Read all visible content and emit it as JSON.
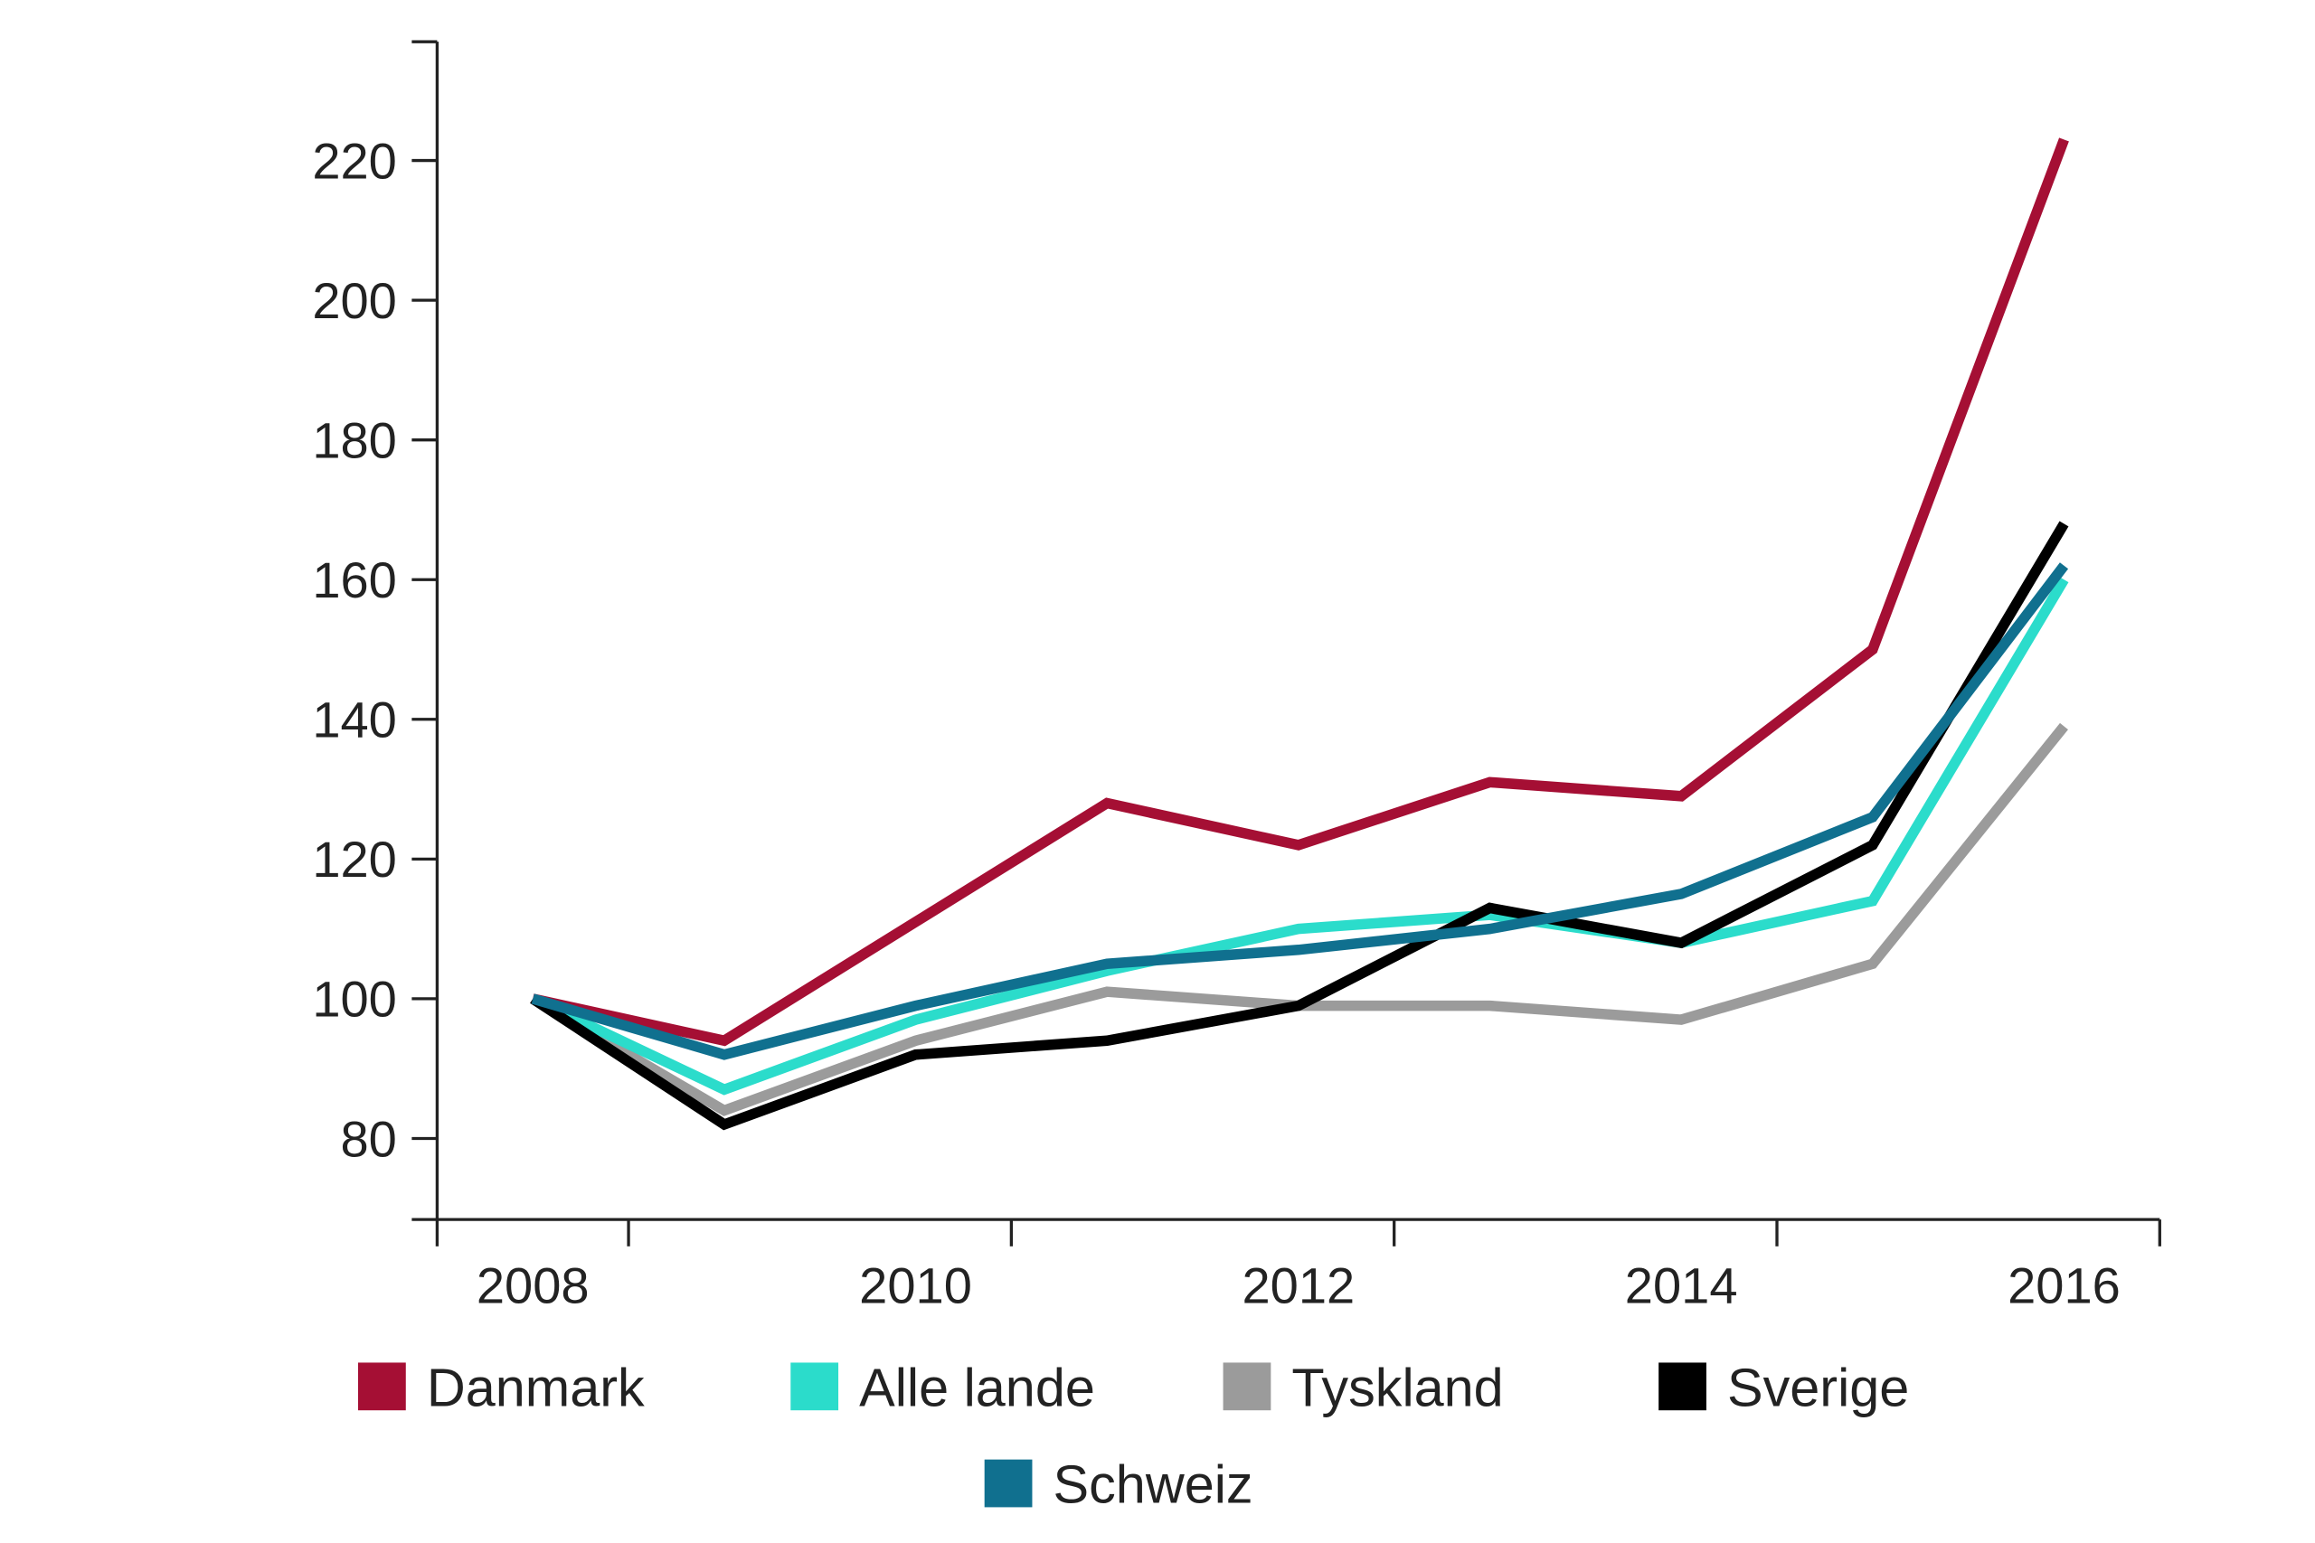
{
  "chart_data": {
    "type": "line",
    "title": "",
    "xlabel": "",
    "ylabel": "",
    "x": [
      2008,
      2009,
      2010,
      2011,
      2012,
      2013,
      2014,
      2015,
      2016
    ],
    "xlim": [
      2007.5,
      2016.5
    ],
    "ylim": [
      68.4,
      237
    ],
    "yticks": [
      80,
      100,
      120,
      140,
      160,
      180,
      200,
      220
    ],
    "ytick_labels": [
      "80",
      "100",
      "120",
      "140",
      "160",
      "180",
      "200",
      "220"
    ],
    "xticks": [
      2007.5,
      2008.5,
      2010.5,
      2012.5,
      2014.5,
      2016.5
    ],
    "xtick_labels": [
      {
        "value": 2008,
        "label": "2008"
      },
      {
        "value": 2010,
        "label": "2010"
      },
      {
        "value": 2012,
        "label": "2012"
      },
      {
        "value": 2014,
        "label": "2014"
      },
      {
        "value": 2016,
        "label": "2016"
      }
    ],
    "grid": false,
    "legend_position": "bottom",
    "series": [
      {
        "name": "Danmark",
        "color": "#a50f34",
        "values": [
          100,
          94,
          111,
          128,
          122,
          131,
          129,
          150,
          223
        ]
      },
      {
        "name": "Alle lande",
        "color": "#2bdccb",
        "values": [
          100,
          87,
          97,
          104,
          110,
          112,
          108,
          114,
          160
        ]
      },
      {
        "name": "Tyskland",
        "color": "#9b9b9b",
        "values": [
          100,
          84,
          94,
          101,
          99,
          99,
          97,
          105,
          139
        ]
      },
      {
        "name": "Sverige",
        "color": "#000000",
        "values": [
          100,
          82,
          92,
          94,
          99,
          113,
          108,
          122,
          168
        ]
      },
      {
        "name": "Schweiz",
        "color": "#10708f",
        "values": [
          100,
          92,
          99,
          105,
          107,
          110,
          115,
          126,
          162
        ]
      }
    ]
  }
}
